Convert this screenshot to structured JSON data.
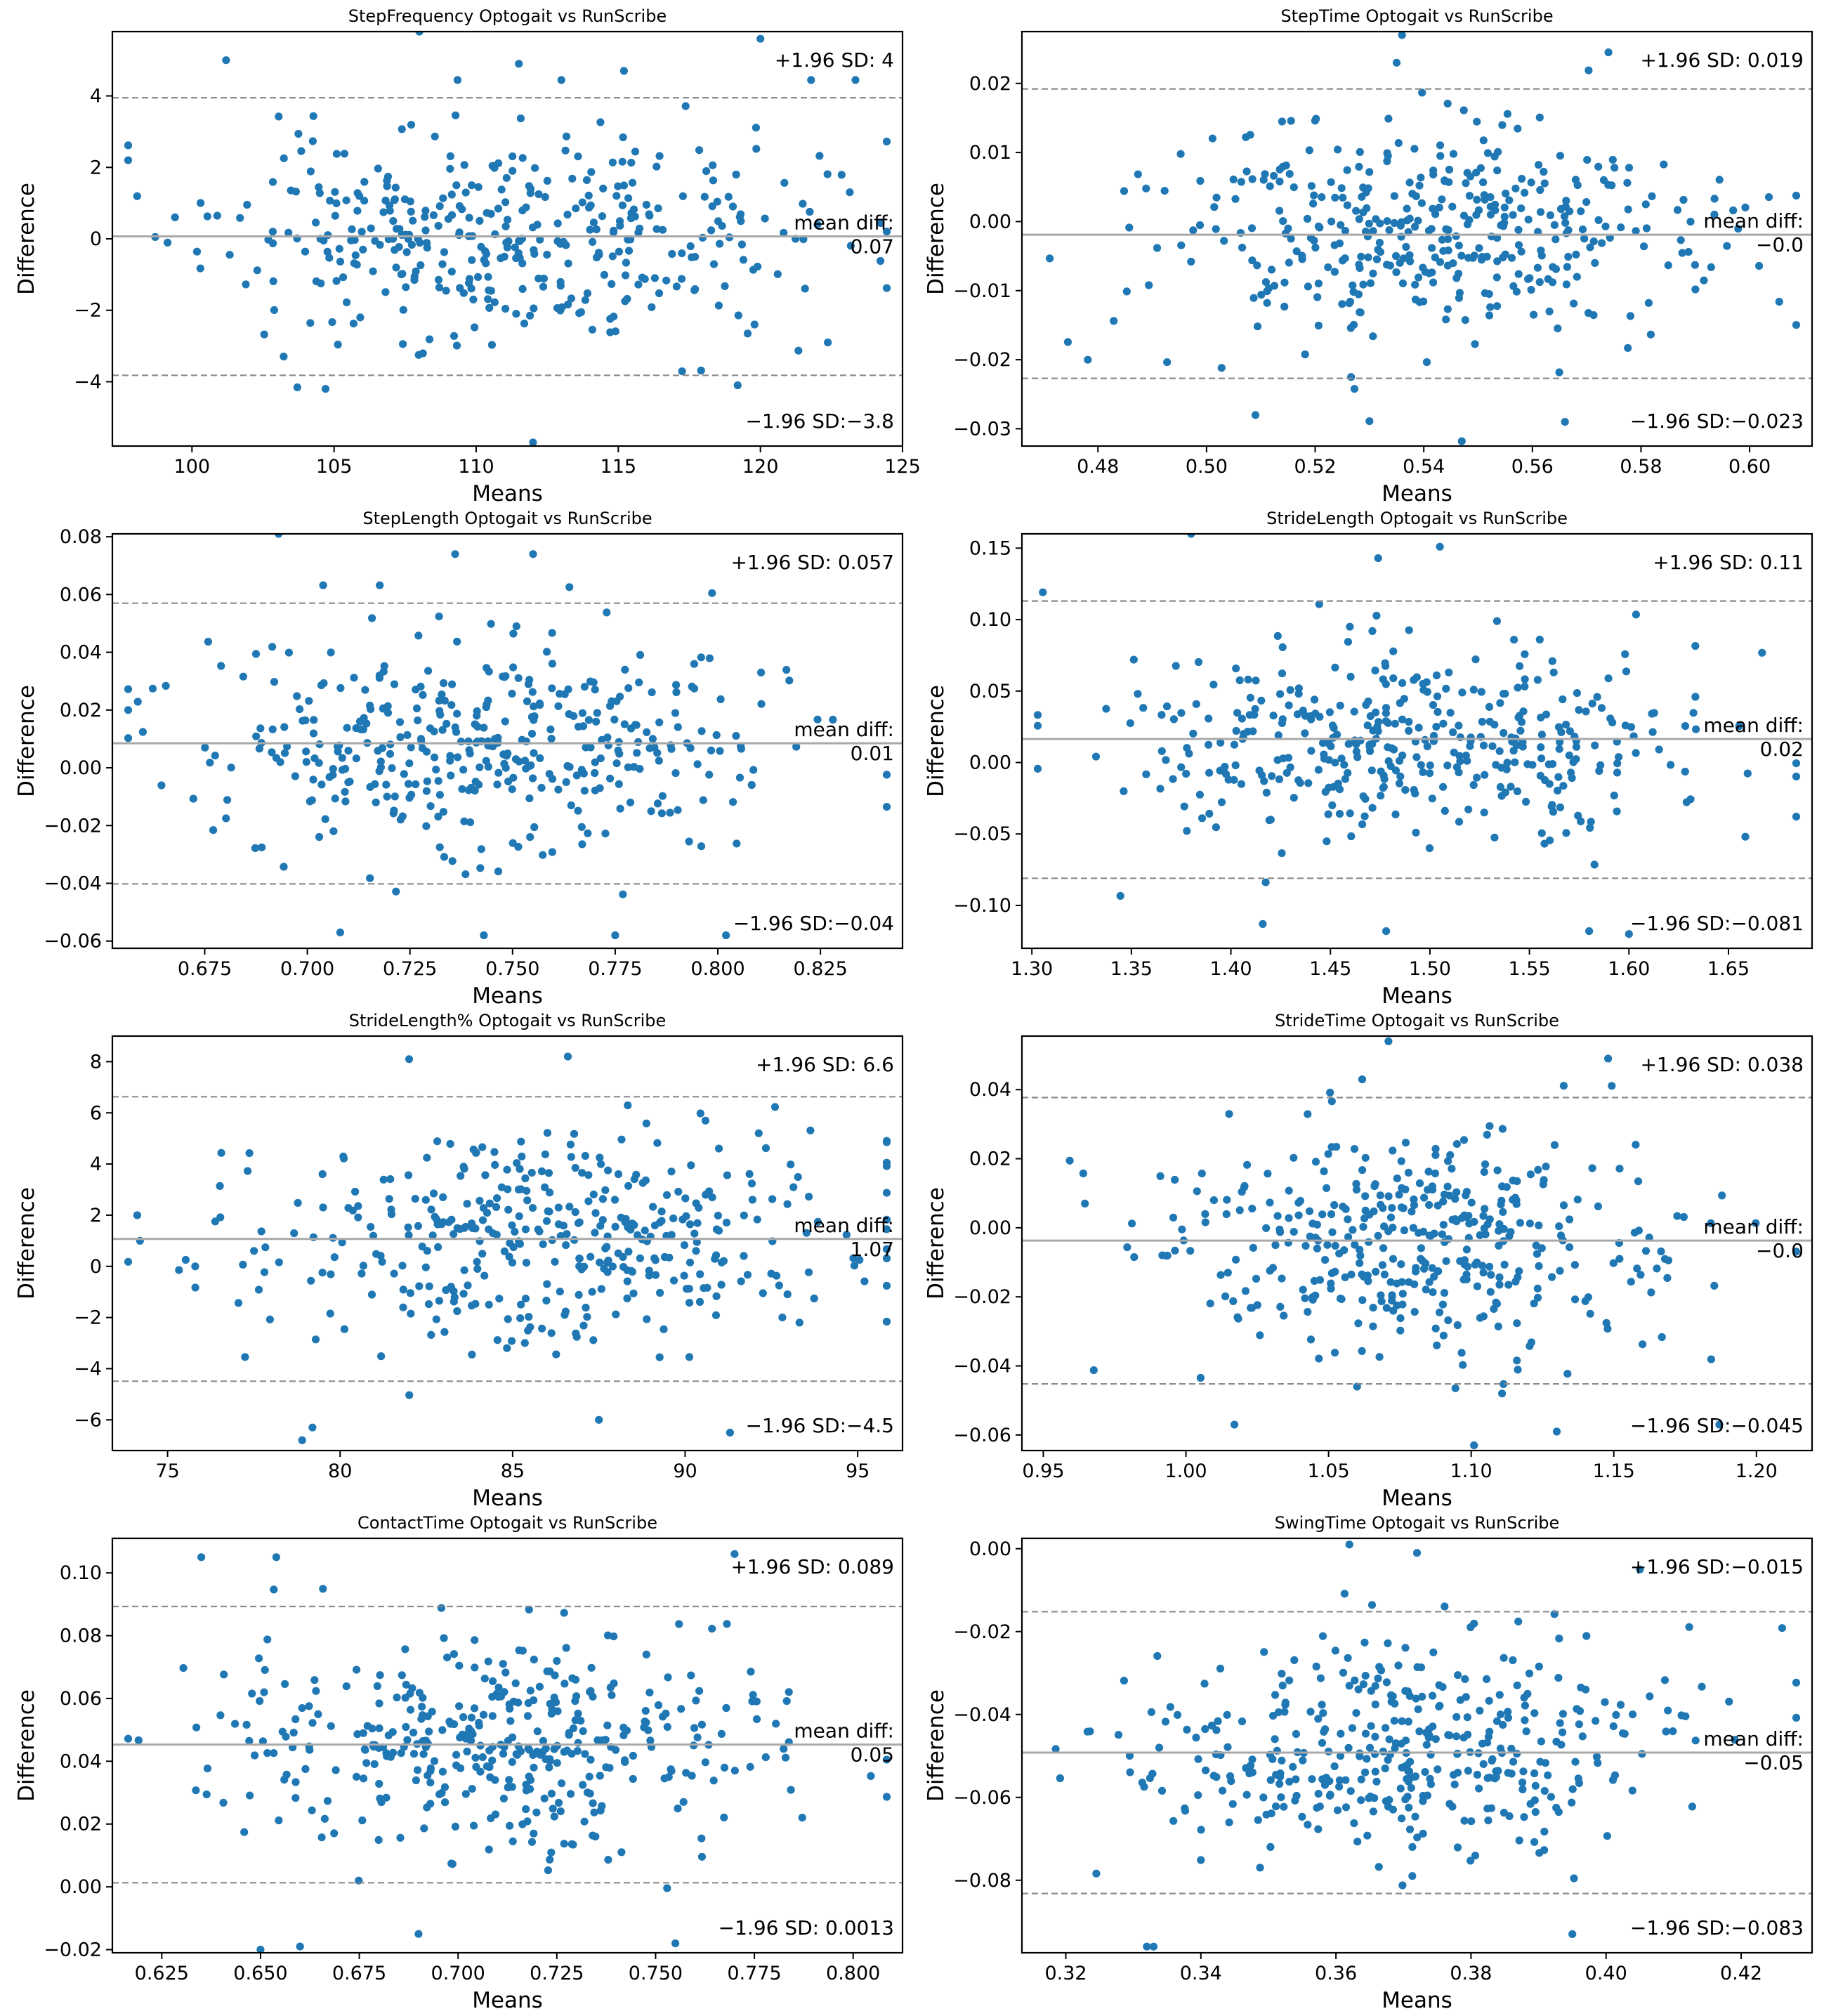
{
  "figure": {
    "point_color": "#1f77b4",
    "mean_line_color": "#a9a9a9",
    "sd_line_color": "#8c8c8c"
  },
  "chart_data": [
    {
      "type": "scatter",
      "title": "StepFrequency Optogait vs RunScribe",
      "xlabel": "Means",
      "ylabel": "Difference",
      "xlim": [
        97.2,
        125.0
      ],
      "ylim": [
        -5.8,
        5.8
      ],
      "xticks": [
        100,
        105,
        110,
        115,
        120,
        125
      ],
      "xtick_labels": [
        "100",
        "105",
        "110",
        "115",
        "120",
        "125"
      ],
      "yticks": [
        -4,
        -2,
        0,
        2,
        4
      ],
      "ytick_labels": [
        "−4",
        "−2",
        "0",
        "2",
        "4"
      ],
      "mean_diff": 0.07,
      "upper_loa": 3.95,
      "lower_loa": -3.82,
      "mean_label": "mean diff:",
      "mean_value_label": "0.07",
      "upper_label": "+1.96 SD: 4",
      "lower_label": "−1.96 SD:−3.8",
      "x_center": 111,
      "x_spread": 5.2,
      "n_points": 400,
      "seed": 11,
      "outliers": [
        [
          108,
          5.8
        ],
        [
          111.5,
          4.9
        ],
        [
          115.2,
          4.7
        ],
        [
          120,
          5.6
        ],
        [
          112,
          -5.7
        ],
        [
          104.7,
          -4.2
        ],
        [
          119.2,
          -4.1
        ],
        [
          101.2,
          5.0
        ]
      ]
    },
    {
      "type": "scatter",
      "title": "StepTime Optogait vs RunScribe",
      "xlabel": "Means",
      "ylabel": "Difference",
      "xlim": [
        0.466,
        0.6115
      ],
      "ylim": [
        -0.0325,
        0.0275
      ],
      "xticks": [
        0.48,
        0.5,
        0.52,
        0.54,
        0.56,
        0.58,
        0.6
      ],
      "xtick_labels": [
        "0.48",
        "0.50",
        "0.52",
        "0.54",
        "0.56",
        "0.58",
        "0.60"
      ],
      "yticks": [
        -0.03,
        -0.02,
        -0.01,
        0.0,
        0.01,
        0.02
      ],
      "ytick_labels": [
        "−0.03",
        "−0.02",
        "−0.01",
        "0.00",
        "0.01",
        "0.02"
      ],
      "mean_diff": -0.0019,
      "upper_loa": 0.0192,
      "lower_loa": -0.0227,
      "mean_label": "mean diff:",
      "mean_value_label": "−0.0",
      "upper_label": "+1.96 SD: 0.019",
      "lower_label": "−1.96 SD:−0.023",
      "x_center": 0.54,
      "x_spread": 0.024,
      "n_points": 400,
      "seed": 23,
      "outliers": [
        [
          0.536,
          0.027
        ],
        [
          0.574,
          0.0245
        ],
        [
          0.547,
          -0.0318
        ],
        [
          0.53,
          -0.0289
        ],
        [
          0.566,
          -0.029
        ],
        [
          0.509,
          -0.028
        ],
        [
          0.535,
          0.023
        ]
      ]
    },
    {
      "type": "scatter",
      "title": "StepLength Optogait vs RunScribe",
      "xlabel": "Means",
      "ylabel": "Difference",
      "xlim": [
        0.6525,
        0.845
      ],
      "ylim": [
        -0.0625,
        0.081
      ],
      "xticks": [
        0.65,
        0.675,
        0.7,
        0.725,
        0.75,
        0.775,
        0.8,
        0.825
      ],
      "xtick_labels": [
        "0.650",
        "0.675",
        "0.700",
        "0.725",
        "0.750",
        "0.775",
        "0.800",
        "0.825"
      ],
      "yticks": [
        -0.06,
        -0.04,
        -0.02,
        0.0,
        0.02,
        0.04,
        0.06,
        0.08
      ],
      "ytick_labels": [
        "−0.06",
        "−0.04",
        "−0.02",
        "0.00",
        "0.02",
        "0.04",
        "0.06",
        "0.08"
      ],
      "mean_diff": 0.0085,
      "upper_loa": 0.057,
      "lower_loa": -0.0402,
      "mean_label": "mean diff:",
      "mean_value_label": "0.01",
      "upper_label": "+1.96 SD: 0.057",
      "lower_label": "−1.96 SD:−0.04",
      "x_center": 0.745,
      "x_spread": 0.035,
      "n_points": 400,
      "seed": 37,
      "outliers": [
        [
          0.693,
          0.081
        ],
        [
          0.736,
          0.074
        ],
        [
          0.755,
          0.074
        ],
        [
          0.743,
          -0.058
        ],
        [
          0.775,
          -0.058
        ],
        [
          0.708,
          -0.057
        ],
        [
          0.802,
          -0.058
        ]
      ]
    },
    {
      "type": "scatter",
      "title": "StrideLength Optogait vs RunScribe",
      "xlabel": "Means",
      "ylabel": "Difference",
      "xlim": [
        1.295,
        1.692
      ],
      "ylim": [
        -0.13,
        0.16
      ],
      "xticks": [
        1.3,
        1.35,
        1.4,
        1.45,
        1.5,
        1.55,
        1.6,
        1.65
      ],
      "xtick_labels": [
        "1.30",
        "1.35",
        "1.40",
        "1.45",
        "1.50",
        "1.55",
        "1.60",
        "1.65"
      ],
      "yticks": [
        -0.1,
        -0.05,
        0.0,
        0.05,
        0.1,
        0.15
      ],
      "ytick_labels": [
        "−0.10",
        "−0.05",
        "0.00",
        "0.05",
        "0.10",
        "0.15"
      ],
      "mean_diff": 0.0165,
      "upper_loa": 0.113,
      "lower_loa": -0.081,
      "mean_label": "mean diff:",
      "mean_value_label": "0.02",
      "upper_label": "+1.96 SD: 0.11",
      "lower_label": "−1.96 SD:−0.081",
      "x_center": 1.49,
      "x_spread": 0.072,
      "n_points": 400,
      "seed": 41,
      "outliers": [
        [
          1.38,
          0.16
        ],
        [
          1.505,
          0.151
        ],
        [
          1.474,
          0.143
        ],
        [
          1.478,
          -0.118
        ],
        [
          1.6,
          -0.12
        ],
        [
          1.58,
          -0.118
        ],
        [
          1.416,
          -0.113
        ]
      ]
    },
    {
      "type": "scatter",
      "title": "StrideLength% Optogait vs RunScribe",
      "xlabel": "Means",
      "ylabel": "Difference",
      "xlim": [
        73.4,
        96.3
      ],
      "ylim": [
        -7.2,
        9.0
      ],
      "xticks": [
        75,
        80,
        85,
        90,
        95
      ],
      "xtick_labels": [
        "75",
        "80",
        "85",
        "90",
        "95"
      ],
      "yticks": [
        -6,
        -4,
        -2,
        0,
        2,
        4,
        6,
        8
      ],
      "ytick_labels": [
        "−6",
        "−4",
        "−2",
        "0",
        "2",
        "4",
        "6",
        "8"
      ],
      "mean_diff": 1.07,
      "upper_loa": 6.63,
      "lower_loa": -4.49,
      "mean_label": "mean diff:",
      "mean_value_label": "1.07",
      "upper_label": "+1.96 SD: 6.6",
      "lower_label": "−1.96 SD:−4.5",
      "x_center": 86,
      "x_spread": 4.4,
      "n_points": 400,
      "seed": 53,
      "outliers": [
        [
          74.2,
          1.0
        ],
        [
          75.8,
          0.0
        ],
        [
          78.9,
          -6.8
        ],
        [
          79.2,
          -6.3
        ],
        [
          87.5,
          -6.0
        ],
        [
          82,
          8.1
        ],
        [
          86.6,
          8.2
        ],
        [
          91.3,
          -6.5
        ]
      ]
    },
    {
      "type": "scatter",
      "title": "StrideTime Optogait vs RunScribe",
      "xlabel": "Means",
      "ylabel": "Difference",
      "xlim": [
        0.9425,
        1.2195
      ],
      "ylim": [
        -0.0645,
        0.0555
      ],
      "xticks": [
        0.95,
        1.0,
        1.05,
        1.1,
        1.15,
        1.2
      ],
      "xtick_labels": [
        "0.95",
        "1.00",
        "1.05",
        "1.10",
        "1.15",
        "1.20"
      ],
      "yticks": [
        -0.06,
        -0.04,
        -0.02,
        0.0,
        0.02,
        0.04
      ],
      "ytick_labels": [
        "−0.06",
        "−0.04",
        "−0.02",
        "0.00",
        "0.02",
        "0.04"
      ],
      "mean_diff": -0.0037,
      "upper_loa": 0.0377,
      "lower_loa": -0.0452,
      "mean_label": "mean diff:",
      "mean_value_label": "−0.0",
      "upper_label": "+1.96 SD: 0.038",
      "lower_label": "−1.96 SD:−0.045",
      "x_center": 1.08,
      "x_spread": 0.045,
      "n_points": 400,
      "seed": 67,
      "outliers": [
        [
          1.071,
          0.054
        ],
        [
          1.148,
          0.049
        ],
        [
          1.101,
          -0.063
        ],
        [
          1.13,
          -0.059
        ],
        [
          1.187,
          -0.057
        ],
        [
          1.017,
          -0.057
        ],
        [
          1.06,
          -0.046
        ]
      ]
    },
    {
      "type": "scatter",
      "title": "ContactTime Optogait vs RunScribe",
      "xlabel": "Means",
      "ylabel": "Difference",
      "xlim": [
        0.6125,
        0.8125
      ],
      "ylim": [
        -0.021,
        0.111
      ],
      "xticks": [
        0.625,
        0.65,
        0.675,
        0.7,
        0.725,
        0.75,
        0.775,
        0.8
      ],
      "xtick_labels": [
        "0.625",
        "0.650",
        "0.675",
        "0.700",
        "0.725",
        "0.750",
        "0.775",
        "0.800"
      ],
      "yticks": [
        -0.02,
        0.0,
        0.02,
        0.04,
        0.06,
        0.08,
        0.1
      ],
      "ytick_labels": [
        "−0.02",
        "0.00",
        "0.02",
        "0.04",
        "0.06",
        "0.08",
        "0.10"
      ],
      "mean_diff": 0.0453,
      "upper_loa": 0.0893,
      "lower_loa": 0.0013,
      "mean_label": "mean diff:",
      "mean_value_label": "0.05",
      "upper_label": "+1.96 SD: 0.089",
      "lower_label": "−1.96 SD: 0.0013",
      "x_center": 0.71,
      "x_spread": 0.036,
      "n_points": 400,
      "seed": 79,
      "outliers": [
        [
          0.635,
          0.105
        ],
        [
          0.654,
          0.105
        ],
        [
          0.77,
          0.106
        ],
        [
          0.65,
          -0.02
        ],
        [
          0.66,
          -0.019
        ],
        [
          0.755,
          -0.018
        ],
        [
          0.69,
          -0.015
        ]
      ]
    },
    {
      "type": "scatter",
      "title": "SwingTime Optogait vs RunScribe",
      "xlabel": "Means",
      "ylabel": "Difference",
      "xlim": [
        0.3135,
        0.4305
      ],
      "ylim": [
        -0.0975,
        0.0025
      ],
      "xticks": [
        0.32,
        0.34,
        0.36,
        0.38,
        0.4,
        0.42
      ],
      "xtick_labels": [
        "0.32",
        "0.34",
        "0.36",
        "0.38",
        "0.40",
        "0.42"
      ],
      "yticks": [
        -0.08,
        -0.06,
        -0.04,
        -0.02,
        0.0
      ],
      "ytick_labels": [
        "−0.08",
        "−0.06",
        "−0.04",
        "−0.02",
        "0.00"
      ],
      "mean_diff": -0.0492,
      "upper_loa": -0.0152,
      "lower_loa": -0.0832,
      "mean_label": "mean diff:",
      "mean_value_label": "−0.05",
      "upper_label": "+1.96 SD:−0.015",
      "lower_label": "−1.96 SD:−0.083",
      "x_center": 0.37,
      "x_spread": 0.02,
      "n_points": 400,
      "seed": 97,
      "outliers": [
        [
          0.362,
          0.001
        ],
        [
          0.372,
          -0.001
        ],
        [
          0.333,
          -0.096
        ],
        [
          0.395,
          -0.093
        ],
        [
          0.405,
          -0.005
        ],
        [
          0.332,
          -0.096
        ]
      ]
    }
  ]
}
